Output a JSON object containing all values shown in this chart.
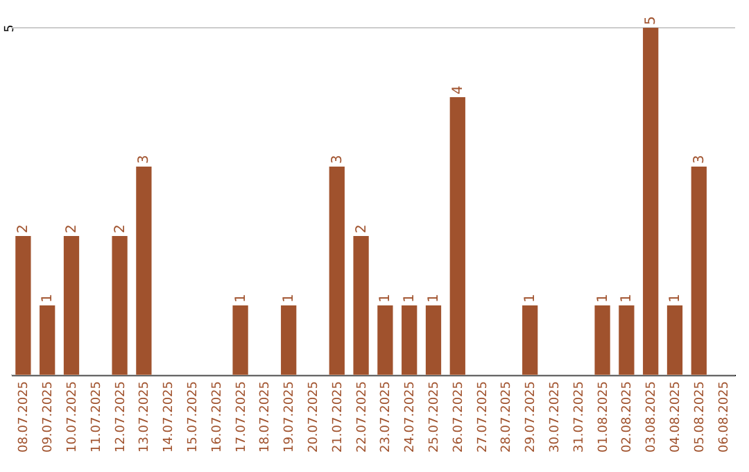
{
  "chart_data": {
    "type": "bar",
    "categories": [
      "08.07.2025",
      "09.07.2025",
      "10.07.2025",
      "11.07.2025",
      "12.07.2025",
      "13.07.2025",
      "14.07.2025",
      "15.07.2025",
      "16.07.2025",
      "17.07.2025",
      "18.07.2025",
      "19.07.2025",
      "20.07.2025",
      "21.07.2025",
      "22.07.2025",
      "23.07.2025",
      "24.07.2025",
      "25.07.2025",
      "26.07.2025",
      "27.07.2025",
      "28.07.2025",
      "29.07.2025",
      "30.07.2025",
      "31.07.2025",
      "01.08.2025",
      "02.08.2025",
      "03.08.2025",
      "04.08.2025",
      "05.08.2025",
      "06.08.2025"
    ],
    "values": [
      2,
      1,
      2,
      0,
      2,
      3,
      0,
      0,
      0,
      1,
      0,
      1,
      0,
      3,
      2,
      1,
      1,
      1,
      4,
      0,
      0,
      1,
      0,
      0,
      1,
      1,
      5,
      1,
      3,
      0
    ],
    "value_labels": [
      "2",
      "1",
      "2",
      null,
      "2",
      "3",
      null,
      null,
      null,
      "1",
      null,
      "1",
      null,
      "3",
      "2",
      "1",
      "1",
      "1",
      "4",
      null,
      null,
      "1",
      null,
      null,
      "1",
      "1",
      "5",
      "1",
      "3",
      null
    ],
    "color": "#a0522d",
    "ylim": [
      0,
      5
    ],
    "yticks": [
      {
        "value": 0,
        "label": null
      },
      5
    ],
    "grid": "y"
  }
}
